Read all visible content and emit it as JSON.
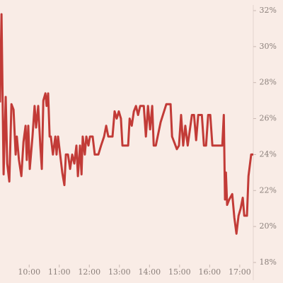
{
  "chart_data": {
    "type": "line",
    "color": "#c23b37",
    "y_axis_side": "right",
    "xlim": [
      9.03,
      17.45
    ],
    "xticks": [
      {
        "value": 10,
        "label": "10:00"
      },
      {
        "value": 11,
        "label": "11:00"
      },
      {
        "value": 12,
        "label": "12:00"
      },
      {
        "value": 13,
        "label": "13:00"
      },
      {
        "value": 14,
        "label": "14:00"
      },
      {
        "value": 15,
        "label": "15:00"
      },
      {
        "value": 16,
        "label": "16:00"
      },
      {
        "value": 17,
        "label": "17:00"
      }
    ],
    "ylim": [
      18,
      32
    ],
    "yticks": [
      {
        "value": 18,
        "label": "18%"
      },
      {
        "value": 20,
        "label": "20%"
      },
      {
        "value": 22,
        "label": "22%"
      },
      {
        "value": 24,
        "label": "24%"
      },
      {
        "value": 26,
        "label": "26%"
      },
      {
        "value": 28,
        "label": "28%"
      },
      {
        "value": 30,
        "label": "30%"
      },
      {
        "value": 32,
        "label": "32%"
      }
    ],
    "x": [
      9.03,
      9.08,
      9.15,
      9.22,
      9.27,
      9.34,
      9.41,
      9.48,
      9.55,
      9.59,
      9.66,
      9.74,
      9.81,
      9.88,
      9.92,
      9.97,
      10.02,
      10.11,
      10.18,
      10.23,
      10.3,
      10.37,
      10.42,
      10.47,
      10.54,
      10.58,
      10.63,
      10.68,
      10.72,
      10.79,
      10.87,
      10.91,
      10.96,
      11.03,
      11.1,
      11.17,
      11.22,
      11.29,
      11.36,
      11.43,
      11.5,
      11.57,
      11.62,
      11.69,
      11.74,
      11.78,
      11.85,
      11.9,
      11.97,
      12.02,
      12.11,
      12.18,
      12.3,
      12.39,
      12.49,
      12.56,
      12.63,
      12.7,
      12.77,
      12.84,
      12.91,
      12.98,
      13.05,
      13.1,
      13.22,
      13.29,
      13.34,
      13.41,
      13.48,
      13.55,
      13.62,
      13.69,
      13.81,
      13.88,
      13.95,
      14.02,
      14.09,
      14.14,
      14.21,
      14.37,
      14.56,
      14.7,
      14.75,
      14.91,
      14.98,
      15.05,
      15.12,
      15.19,
      15.27,
      15.41,
      15.48,
      15.55,
      15.62,
      15.74,
      15.81,
      15.88,
      15.95,
      16.02,
      16.09,
      16.18,
      16.25,
      16.35,
      16.42,
      16.47,
      16.51,
      16.54,
      16.58,
      16.65,
      16.75,
      16.82,
      16.89,
      16.96,
      17.03,
      17.1,
      17.15,
      17.24,
      17.29,
      17.38,
      17.45
    ],
    "values": [
      26.9,
      31.8,
      22.9,
      27.2,
      23.5,
      22.5,
      26.8,
      26.5,
      24,
      25,
      23.7,
      22.8,
      24.7,
      25.6,
      23.7,
      25.6,
      23.2,
      25,
      26.7,
      25.5,
      26.7,
      24.5,
      23.2,
      27,
      27.4,
      26.7,
      27.4,
      25,
      25,
      24,
      25,
      24,
      25,
      24,
      23,
      22.3,
      24,
      24,
      23.2,
      24,
      23.5,
      24.5,
      22.8,
      24.5,
      22.9,
      25,
      24,
      25,
      24.5,
      25,
      25,
      24,
      24,
      24.5,
      25,
      25.6,
      25,
      25,
      25,
      26.4,
      26,
      26.4,
      26,
      24.5,
      24.5,
      24.5,
      26,
      25.6,
      26.4,
      26.7,
      26.2,
      26.7,
      26.7,
      25,
      26.7,
      25.4,
      26.7,
      24.5,
      24.5,
      25.8,
      26.8,
      26.8,
      25,
      24.3,
      24.5,
      26.2,
      24.5,
      25.6,
      24.5,
      26.2,
      26.2,
      24.8,
      26.2,
      26.2,
      24.5,
      24.5,
      26.2,
      26.2,
      24.5,
      24.5,
      24.5,
      24.5,
      24.5,
      26.2,
      21.5,
      23,
      21.2,
      21.5,
      21.8,
      20.5,
      19.6,
      20.6,
      21,
      21.6,
      20.6,
      20.6,
      22.8,
      24,
      24
    ]
  }
}
